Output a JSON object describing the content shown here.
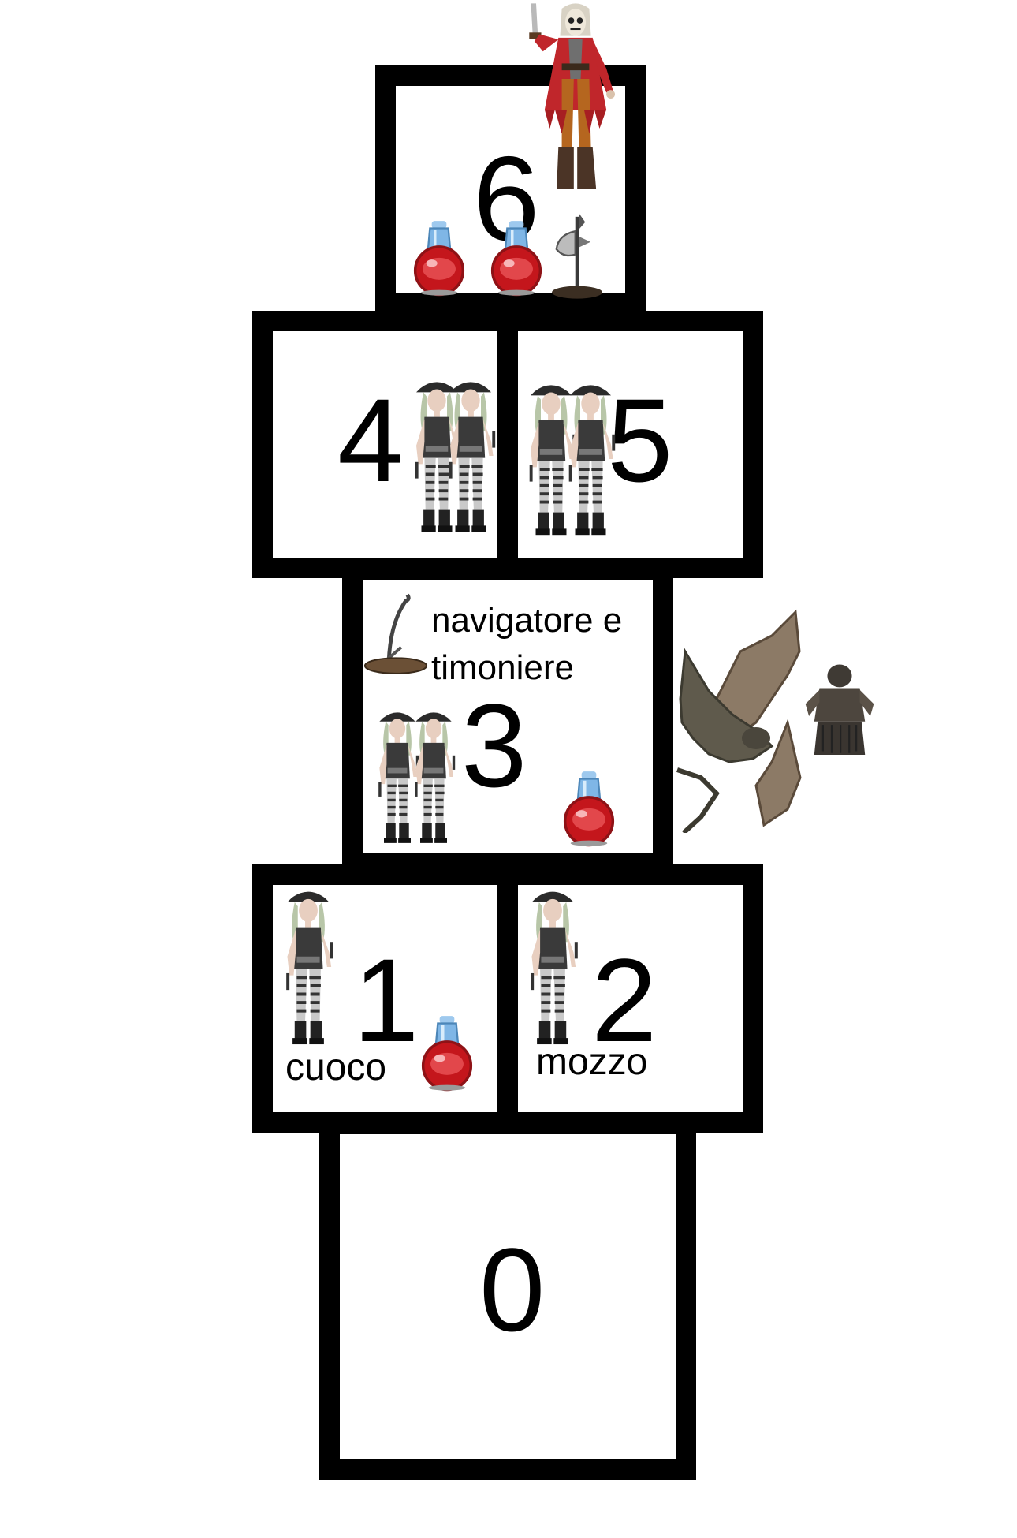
{
  "board": {
    "cells": [
      {
        "number": "0"
      },
      {
        "number": "1",
        "role": "cuoco"
      },
      {
        "number": "2",
        "role": "mozzo"
      },
      {
        "number": "3",
        "role_line1": "navigatore e",
        "role_line2": "timoniere"
      },
      {
        "number": "4"
      },
      {
        "number": "5"
      },
      {
        "number": "6"
      }
    ]
  },
  "icons": {
    "pirate_woman": "pirate-woman-sprite",
    "captain": "skull-pirate-captain-sprite",
    "potion": "red-health-potion-icon",
    "axe": "halberd-axe-icon",
    "sword": "curved-sword-icon",
    "dragon": "winged-dragon-sprite",
    "armor": "armor-set-icon"
  },
  "colors": {
    "border": "#000000",
    "background": "#ffffff",
    "potion_red": "#c4161c",
    "potion_cap": "#7fb6e6",
    "captain_coat": "#c0262b"
  }
}
